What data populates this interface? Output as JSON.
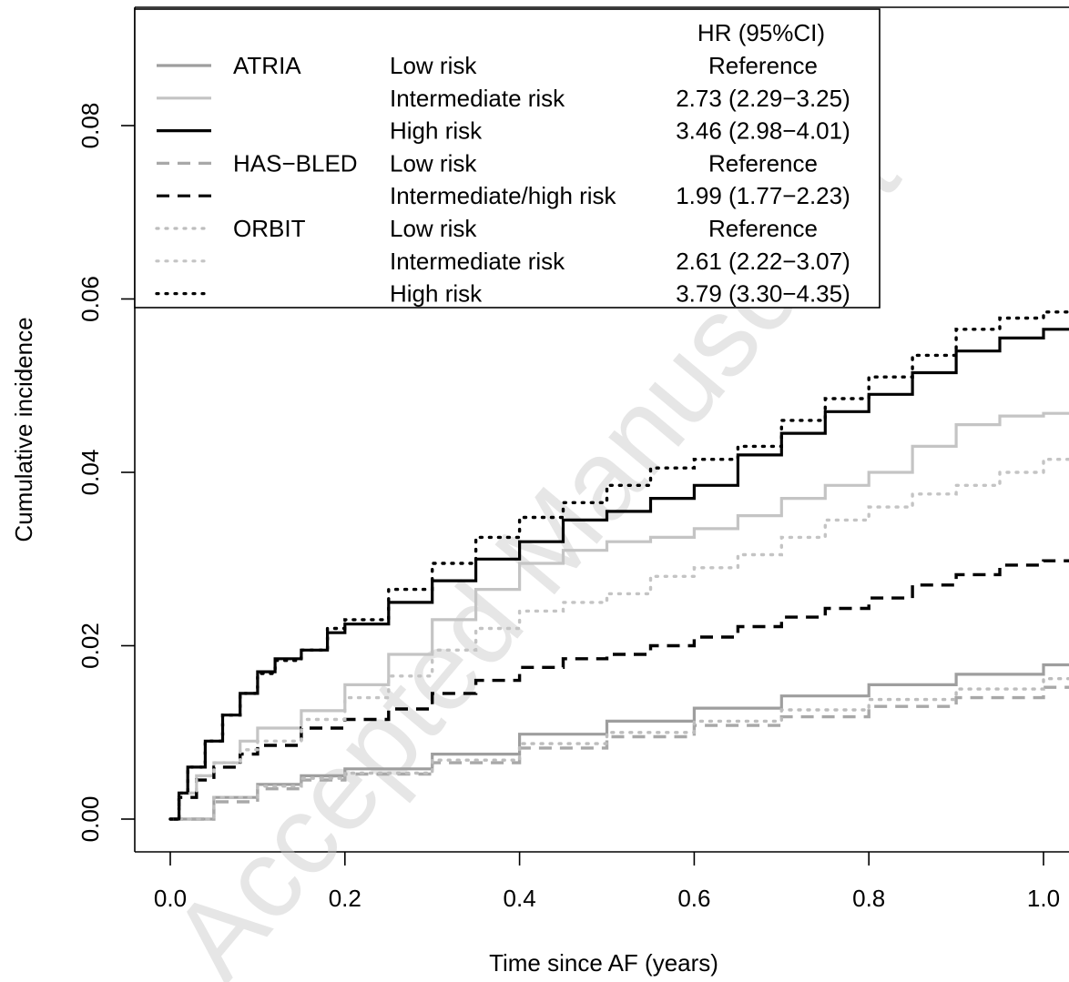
{
  "chart_data": {
    "type": "line",
    "title": "",
    "xlabel": "Time since AF (years)",
    "ylabel": "Cumulative incidence",
    "xlim": [
      0,
      1.05
    ],
    "ylim": [
      0,
      0.09
    ],
    "x_ticks": [
      "0.0",
      "0.2",
      "0.4",
      "0.6",
      "0.8",
      "1.0"
    ],
    "y_ticks": [
      "0.00",
      "0.02",
      "0.04",
      "0.06",
      "0.08"
    ],
    "grid": false,
    "watermark": "Accepted Manuscript",
    "legend": {
      "placement": "top-left",
      "header": "HR (95%CI)",
      "rows": [
        {
          "score": "ATRIA",
          "group": "Low risk",
          "hr": "Reference",
          "series": 0
        },
        {
          "score": "",
          "group": "Intermediate risk",
          "hr": "2.73 (2.29−3.25)",
          "series": 1
        },
        {
          "score": "",
          "group": "High risk",
          "hr": "3.46 (2.98−4.01)",
          "series": 2
        },
        {
          "score": "HAS−BLED",
          "group": "Low risk",
          "hr": "Reference",
          "series": 3
        },
        {
          "score": "",
          "group": "Intermediate/high risk",
          "hr": "1.99 (1.77−2.23)",
          "series": 4
        },
        {
          "score": "ORBIT",
          "group": "Low risk",
          "hr": "Reference",
          "series": 5
        },
        {
          "score": "",
          "group": "Intermediate risk",
          "hr": "2.61 (2.22−3.07)",
          "series": 6
        },
        {
          "score": "",
          "group": "High risk",
          "hr": "3.79 (3.30−4.35)",
          "series": 7
        }
      ]
    },
    "series": [
      {
        "color": "#9e9e9e",
        "dash": "solid",
        "x": [
          0,
          0.05,
          0.1,
          0.15,
          0.2,
          0.3,
          0.4,
          0.5,
          0.6,
          0.7,
          0.8,
          0.9,
          1.0,
          1.05
        ],
        "y": [
          0,
          0.0025,
          0.004,
          0.005,
          0.0058,
          0.0075,
          0.0098,
          0.0113,
          0.0128,
          0.0142,
          0.0155,
          0.0167,
          0.0178,
          0.0185
        ]
      },
      {
        "color": "#c4c4c4",
        "dash": "solid",
        "x": [
          0,
          0.01,
          0.03,
          0.05,
          0.08,
          0.1,
          0.15,
          0.2,
          0.25,
          0.3,
          0.35,
          0.4,
          0.45,
          0.5,
          0.55,
          0.6,
          0.65,
          0.7,
          0.75,
          0.8,
          0.85,
          0.9,
          0.95,
          1.0,
          1.05
        ],
        "y": [
          0,
          0.003,
          0.005,
          0.0065,
          0.009,
          0.0105,
          0.0125,
          0.0155,
          0.019,
          0.023,
          0.0265,
          0.0295,
          0.031,
          0.032,
          0.0325,
          0.0335,
          0.035,
          0.037,
          0.0385,
          0.04,
          0.043,
          0.0455,
          0.0465,
          0.0468,
          0.0478
        ]
      },
      {
        "color": "#000000",
        "dash": "solid",
        "x": [
          0,
          0.01,
          0.02,
          0.04,
          0.06,
          0.08,
          0.1,
          0.12,
          0.15,
          0.18,
          0.2,
          0.25,
          0.3,
          0.35,
          0.4,
          0.45,
          0.5,
          0.55,
          0.6,
          0.65,
          0.7,
          0.75,
          0.8,
          0.85,
          0.9,
          0.95,
          1.0,
          1.05
        ],
        "y": [
          0,
          0.003,
          0.006,
          0.009,
          0.012,
          0.0145,
          0.017,
          0.0185,
          0.0195,
          0.0215,
          0.0225,
          0.025,
          0.0275,
          0.03,
          0.032,
          0.0345,
          0.0355,
          0.037,
          0.0385,
          0.042,
          0.0445,
          0.047,
          0.049,
          0.0515,
          0.054,
          0.0555,
          0.0565,
          0.0572
        ]
      },
      {
        "color": "#a8a8a8",
        "dash": "dashed",
        "x": [
          0,
          0.05,
          0.1,
          0.15,
          0.2,
          0.3,
          0.4,
          0.5,
          0.6,
          0.7,
          0.8,
          0.9,
          1.0,
          1.05
        ],
        "y": [
          0,
          0.002,
          0.0035,
          0.0045,
          0.0052,
          0.0065,
          0.0082,
          0.0095,
          0.0108,
          0.0118,
          0.013,
          0.014,
          0.0152,
          0.016
        ]
      },
      {
        "color": "#000000",
        "dash": "dashed",
        "x": [
          0,
          0.01,
          0.03,
          0.05,
          0.08,
          0.1,
          0.15,
          0.2,
          0.25,
          0.3,
          0.35,
          0.4,
          0.45,
          0.5,
          0.55,
          0.6,
          0.65,
          0.7,
          0.75,
          0.8,
          0.85,
          0.9,
          0.95,
          1.0,
          1.05
        ],
        "y": [
          0,
          0.0025,
          0.0045,
          0.006,
          0.0075,
          0.0085,
          0.0105,
          0.0115,
          0.0127,
          0.0145,
          0.016,
          0.0175,
          0.0185,
          0.019,
          0.02,
          0.021,
          0.0222,
          0.0233,
          0.0243,
          0.0255,
          0.027,
          0.0282,
          0.0293,
          0.0298,
          0.0308
        ]
      },
      {
        "color": "#bdbdbd",
        "dash": "dotted",
        "x": [
          0,
          0.05,
          0.1,
          0.15,
          0.2,
          0.3,
          0.4,
          0.5,
          0.6,
          0.7,
          0.8,
          0.9,
          1.0,
          1.05
        ],
        "y": [
          0,
          0.0025,
          0.0038,
          0.0047,
          0.0053,
          0.0068,
          0.0087,
          0.01,
          0.0113,
          0.0126,
          0.0138,
          0.015,
          0.0162,
          0.0172
        ]
      },
      {
        "color": "#c4c4c4",
        "dash": "dotted",
        "x": [
          0,
          0.01,
          0.03,
          0.05,
          0.08,
          0.1,
          0.15,
          0.2,
          0.25,
          0.3,
          0.35,
          0.4,
          0.45,
          0.5,
          0.55,
          0.6,
          0.65,
          0.7,
          0.75,
          0.8,
          0.85,
          0.9,
          0.95,
          1.0,
          1.05
        ],
        "y": [
          0,
          0.003,
          0.005,
          0.0065,
          0.008,
          0.009,
          0.0115,
          0.014,
          0.0165,
          0.0195,
          0.022,
          0.024,
          0.025,
          0.026,
          0.028,
          0.029,
          0.0305,
          0.0325,
          0.0345,
          0.036,
          0.0375,
          0.0385,
          0.04,
          0.0415,
          0.0428
        ]
      },
      {
        "color": "#000000",
        "dash": "dotted",
        "x": [
          0,
          0.01,
          0.02,
          0.04,
          0.06,
          0.08,
          0.1,
          0.12,
          0.15,
          0.18,
          0.2,
          0.25,
          0.3,
          0.35,
          0.4,
          0.45,
          0.5,
          0.55,
          0.6,
          0.65,
          0.7,
          0.75,
          0.8,
          0.85,
          0.9,
          0.95,
          1.0,
          1.05
        ],
        "y": [
          0,
          0.003,
          0.006,
          0.009,
          0.012,
          0.0145,
          0.0168,
          0.0183,
          0.0195,
          0.022,
          0.023,
          0.0265,
          0.0295,
          0.0325,
          0.0348,
          0.0365,
          0.0385,
          0.0405,
          0.0415,
          0.043,
          0.046,
          0.0485,
          0.051,
          0.0535,
          0.0565,
          0.0578,
          0.0585,
          0.0593
        ]
      }
    ]
  }
}
